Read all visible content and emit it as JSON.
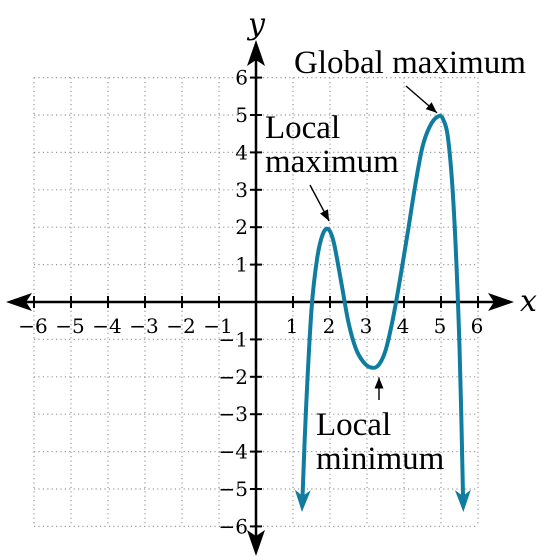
{
  "chart_data": {
    "type": "line",
    "title": "",
    "xlabel": "x",
    "ylabel": "y",
    "xlim": [
      -6,
      6
    ],
    "ylim": [
      -6,
      6
    ],
    "x_ticks": [
      {
        "value": -6,
        "label": "−6"
      },
      {
        "value": -5,
        "label": "−5"
      },
      {
        "value": -4,
        "label": "−4"
      },
      {
        "value": -3,
        "label": "−3"
      },
      {
        "value": -2,
        "label": "−2"
      },
      {
        "value": -1,
        "label": "−1"
      },
      {
        "value": 1,
        "label": "1"
      },
      {
        "value": 2,
        "label": "2"
      },
      {
        "value": 3,
        "label": "3"
      },
      {
        "value": 4,
        "label": "4"
      },
      {
        "value": 5,
        "label": "5"
      },
      {
        "value": 6,
        "label": "6"
      }
    ],
    "y_ticks": [
      {
        "value": -6,
        "label": "−6"
      },
      {
        "value": -5,
        "label": "−5"
      },
      {
        "value": -4,
        "label": "−4"
      },
      {
        "value": -3,
        "label": "−3"
      },
      {
        "value": -2,
        "label": "−2"
      },
      {
        "value": -1,
        "label": "−1"
      },
      {
        "value": 1,
        "label": "1"
      },
      {
        "value": 2,
        "label": "2"
      },
      {
        "value": 3,
        "label": "3"
      },
      {
        "value": 4,
        "label": "4"
      },
      {
        "value": 5,
        "label": "5"
      },
      {
        "value": 6,
        "label": "6"
      }
    ],
    "grid": "dotted",
    "series": [
      {
        "color": "#0f7ca0",
        "x": [
          1.25,
          1.35,
          1.5,
          1.65,
          1.8,
          1.95,
          2.1,
          2.3,
          2.5,
          2.7,
          2.9,
          3.1,
          3.3,
          3.5,
          3.7,
          3.9,
          4.1,
          4.3,
          4.5,
          4.7,
          4.9,
          5.05,
          5.2,
          5.35,
          5.5,
          5.6
        ],
        "y": [
          -5.4,
          -2.9,
          -0.2,
          1.15,
          1.8,
          1.95,
          1.6,
          0.55,
          -0.55,
          -1.25,
          -1.6,
          -1.75,
          -1.7,
          -1.3,
          -0.45,
          0.65,
          1.85,
          3.1,
          4.15,
          4.7,
          4.95,
          4.9,
          4.3,
          2.4,
          -1.2,
          -5.4
        ]
      }
    ],
    "annotations": [
      {
        "lines": [
          "Global maximum"
        ],
        "x": 5,
        "y": 4.95
      },
      {
        "lines": [
          "Local",
          "maximum"
        ],
        "x": 1.95,
        "y": 1.95
      },
      {
        "lines": [
          "Local",
          "minimum"
        ],
        "x": 3.3,
        "y": -1.75
      }
    ]
  }
}
